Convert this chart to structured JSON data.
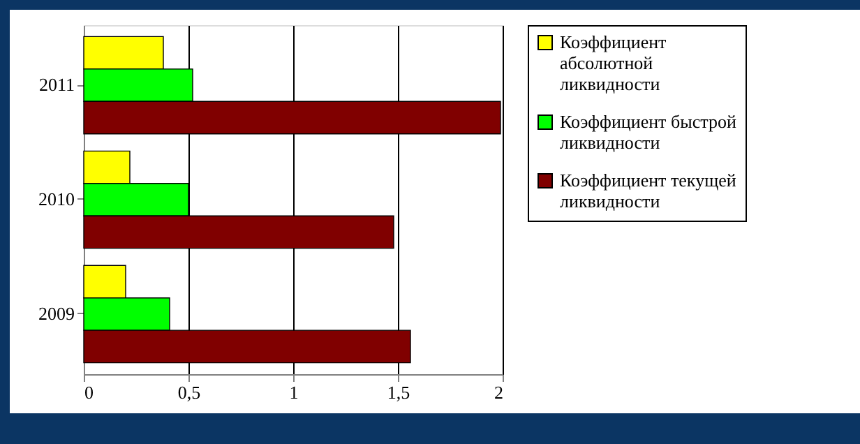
{
  "chart_data": {
    "type": "bar",
    "orientation": "horizontal",
    "categories": [
      "2011",
      "2010",
      "2009"
    ],
    "series": [
      {
        "name": "Коэффициент абсолютной ликвидности",
        "color": "#ffff00",
        "values": [
          0.38,
          0.22,
          0.2
        ]
      },
      {
        "name": "Коэффициент быстрой ликвидности",
        "color": "#00ff00",
        "values": [
          0.52,
          0.5,
          0.41
        ]
      },
      {
        "name": "Коэффициент текущей ликвидности",
        "color": "#800000",
        "values": [
          1.99,
          1.48,
          1.56
        ]
      }
    ],
    "xlim": [
      0,
      2
    ],
    "xticks": [
      0,
      {
        "value": 0.5,
        "label": "0,5"
      },
      1,
      {
        "value": 1.5,
        "label": "1,5"
      },
      2
    ],
    "grid": "x",
    "legend": "right"
  }
}
